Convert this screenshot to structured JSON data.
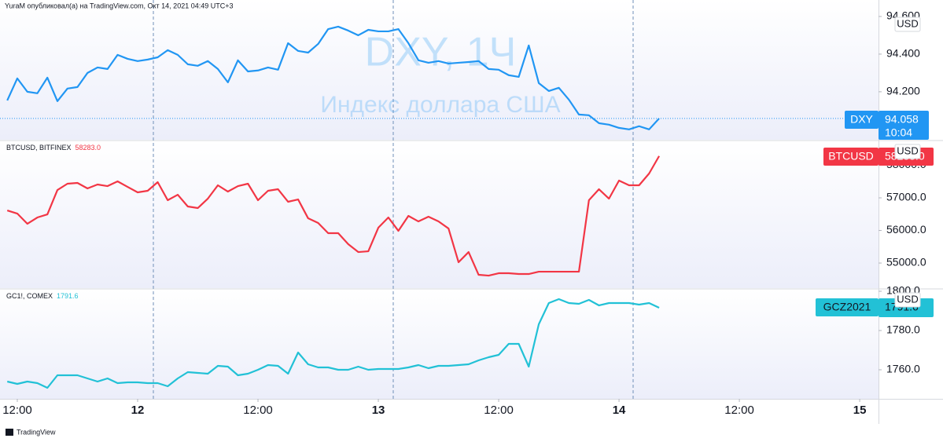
{
  "header": "YuraM опубликовал(а) на TradingView.com, Окт 14, 2021 04:49 UTC+3",
  "footer": "TradingView",
  "chart_data": [
    {
      "type": "line",
      "watermark": "DXY, 1Ч",
      "watermark_subtitle": "Индекс доллара США",
      "unit": "USD",
      "xlim": [
        -1.725,
        85.875
      ],
      "x": [
        -1,
        0,
        1,
        2,
        3,
        4,
        5,
        6,
        7,
        8,
        9,
        10,
        11,
        12,
        13,
        14,
        15,
        16,
        17,
        18,
        19,
        20,
        21,
        22,
        23,
        24,
        25,
        26,
        27,
        28,
        29,
        30,
        31,
        32,
        33,
        34,
        35,
        36,
        37,
        38,
        39,
        40,
        41,
        42,
        43,
        44,
        45,
        46,
        47,
        48,
        49,
        50,
        51,
        52,
        53,
        54,
        55,
        56,
        57,
        58,
        59,
        60,
        61,
        62,
        63,
        64
      ],
      "ylim": [
        93.945,
        94.6875
      ],
      "yticks": [
        {
          "value": 94.2,
          "label": "94.200"
        },
        {
          "value": 94.4,
          "label": "94.400"
        },
        {
          "value": 94.6,
          "label": "94.600"
        }
      ],
      "series": [
        {
          "symbol": "DXY",
          "color": "#2196f3",
          "last_label": "94.058",
          "countdown": "10:04",
          "values": [
            94.154,
            94.271,
            94.2,
            94.192,
            94.275,
            94.15,
            94.217,
            94.225,
            94.3,
            94.329,
            94.321,
            94.396,
            94.375,
            94.363,
            94.371,
            94.383,
            94.421,
            94.396,
            94.346,
            94.338,
            94.363,
            94.321,
            94.25,
            94.367,
            94.308,
            94.313,
            94.329,
            94.317,
            94.458,
            94.417,
            94.408,
            94.454,
            94.533,
            94.546,
            94.525,
            94.5,
            94.529,
            94.521,
            94.521,
            94.533,
            94.458,
            94.367,
            94.354,
            94.363,
            94.35,
            94.354,
            94.358,
            94.363,
            94.321,
            94.317,
            94.288,
            94.279,
            94.446,
            94.246,
            94.204,
            94.221,
            94.158,
            94.079,
            94.075,
            94.033,
            94.025,
            94.008,
            94.0,
            94.017,
            94.0,
            94.058
          ]
        }
      ]
    },
    {
      "type": "line",
      "unit": "USD",
      "xlim": [
        -1.725,
        85.875
      ],
      "x": [
        -1,
        0,
        1,
        2,
        3,
        4,
        5,
        6,
        7,
        8,
        9,
        10,
        11,
        12,
        13,
        14,
        15,
        16,
        17,
        18,
        19,
        20,
        21,
        22,
        23,
        24,
        25,
        26,
        27,
        28,
        29,
        30,
        31,
        32,
        33,
        34,
        35,
        36,
        37,
        38,
        39,
        40,
        41,
        42,
        43,
        44,
        45,
        46,
        47,
        48,
        49,
        50,
        51,
        52,
        53,
        54,
        55,
        56,
        57,
        58,
        59,
        60,
        61,
        62,
        63,
        64
      ],
      "ylim": [
        54230,
        58735
      ],
      "yticks": [
        {
          "value": 55000,
          "label": "55000.0"
        },
        {
          "value": 56000,
          "label": "56000.0"
        },
        {
          "value": 57000,
          "label": "57000.0"
        },
        {
          "value": 58000,
          "label": "58000.0"
        }
      ],
      "series": [
        {
          "name": "BTCUSD, BITFINEX",
          "symbol": "BTCUSD",
          "color": "#f23645",
          "last_label": "58283.0",
          "values": [
            56614,
            56518,
            56205,
            56398,
            56494,
            57241,
            57434,
            57458,
            57289,
            57410,
            57361,
            57506,
            57337,
            57169,
            57217,
            57482,
            56928,
            57096,
            56735,
            56687,
            56976,
            57386,
            57193,
            57361,
            57434,
            56928,
            57217,
            57265,
            56880,
            56952,
            56373,
            56229,
            55916,
            55916,
            55578,
            55337,
            55361,
            56084,
            56398,
            55988,
            56446,
            56277,
            56422,
            56277,
            56060,
            55024,
            55337,
            54639,
            54614,
            54687,
            54687,
            54663,
            54663,
            54735,
            54735,
            54735,
            54735,
            54735,
            56928,
            57265,
            56976,
            57530,
            57386,
            57386,
            57747,
            58283
          ]
        }
      ]
    },
    {
      "type": "line",
      "unit": "USD",
      "xlim": [
        -1.725,
        85.875
      ],
      "x": [
        -1,
        0,
        1,
        2,
        3,
        4,
        5,
        6,
        7,
        8,
        9,
        10,
        11,
        12,
        13,
        14,
        15,
        16,
        17,
        18,
        19,
        20,
        21,
        22,
        23,
        24,
        25,
        26,
        27,
        28,
        29,
        30,
        31,
        32,
        33,
        34,
        35,
        36,
        37,
        38,
        39,
        40,
        41,
        42,
        43,
        44,
        45,
        46,
        47,
        48,
        49,
        50,
        51,
        52,
        53,
        54,
        55,
        56,
        57,
        58,
        59,
        60,
        61,
        62,
        63,
        64
      ],
      "ylim": [
        1745.2,
        1800.8
      ],
      "yticks": [
        {
          "value": 1760,
          "label": "1760.0"
        },
        {
          "value": 1780,
          "label": "1780.0"
        },
        {
          "value": 1800,
          "label": "1800.0"
        }
      ],
      "xticks": [
        {
          "value": 0,
          "label": "12:00"
        },
        12,
        {
          "value": 24,
          "label": "12:00"
        },
        {
          "value": 36,
          "label": "13"
        },
        {
          "value": 48,
          "label": "12:00"
        },
        {
          "value": 60,
          "label": "14"
        },
        {
          "value": 72,
          "label": "12:00"
        },
        {
          "value": 84,
          "label": "15"
        }
      ],
      "series": [
        {
          "name": "GC1!, COMEX",
          "symbol": "GCZ2021",
          "color": "#22c1d6",
          "last_label": "1791.6",
          "values": [
            1754.0,
            1752.8,
            1754.0,
            1753.2,
            1750.8,
            1757.2,
            1757.2,
            1757.2,
            1755.6,
            1754.0,
            1755.6,
            1753.2,
            1753.6,
            1753.6,
            1753.2,
            1753.2,
            1751.6,
            1755.6,
            1758.8,
            1758.4,
            1758.0,
            1762.0,
            1761.6,
            1757.2,
            1758.0,
            1760.0,
            1762.4,
            1762.0,
            1758.0,
            1768.8,
            1762.8,
            1761.2,
            1761.2,
            1760.0,
            1760.0,
            1761.6,
            1760.0,
            1760.4,
            1760.4,
            1760.4,
            1761.2,
            1762.4,
            1760.8,
            1762.0,
            1762.0,
            1762.4,
            1762.8,
            1764.8,
            1766.4,
            1767.6,
            1773.2,
            1773.2,
            1761.6,
            1783.2,
            1794.0,
            1796.0,
            1794.0,
            1793.6,
            1795.6,
            1792.8,
            1794.0,
            1794.0,
            1794.0,
            1793.2,
            1794.0,
            1791.6
          ]
        }
      ]
    }
  ]
}
